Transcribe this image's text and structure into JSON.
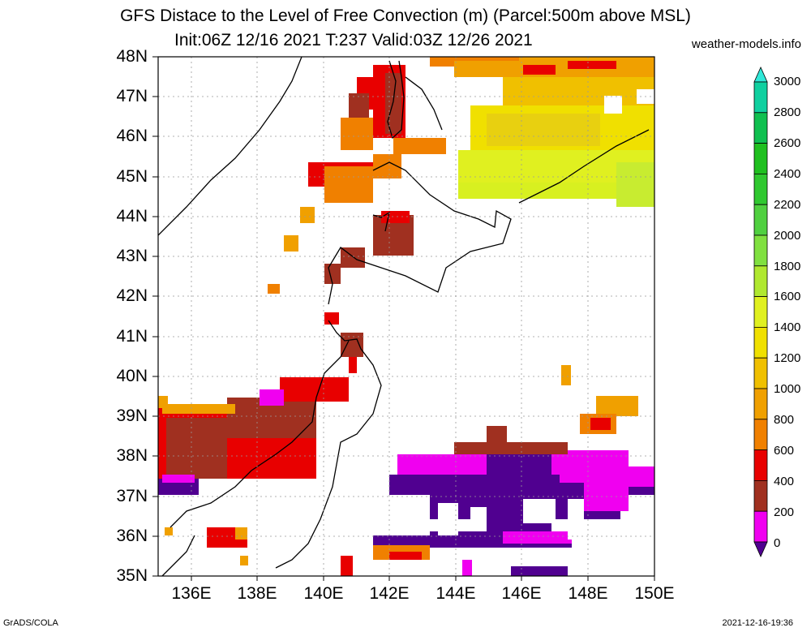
{
  "title_line1": "GFS Distace to the Level of Free Convection (m) (Parcel:500m above MSL)",
  "title_line2": "Init:06Z 12/16 2021 T:237 Valid:03Z 12/26 2021",
  "site": "weather-models.info",
  "footer_left": "GrADS/COLA",
  "footer_right": "2021-12-16-19:36",
  "map": {
    "lat_labels": [
      "48N",
      "47N",
      "46N",
      "45N",
      "44N",
      "43N",
      "42N",
      "41N",
      "40N",
      "39N",
      "38N",
      "37N",
      "36N",
      "35N"
    ],
    "lon_labels": [
      "136E",
      "138E",
      "140E",
      "142E",
      "144E",
      "146E",
      "148E",
      "150E"
    ],
    "lat_range": [
      35,
      48
    ],
    "lon_range": [
      135,
      150
    ]
  },
  "colorbar": {
    "labels": [
      "3000",
      "2800",
      "2600",
      "2400",
      "2200",
      "2000",
      "1800",
      "1600",
      "1400",
      "1200",
      "1000",
      "800",
      "600",
      "400",
      "200",
      "0"
    ],
    "colors": [
      "#30e8d8",
      "#10d0a0",
      "#10c050",
      "#20c020",
      "#30c830",
      "#50d040",
      "#80e040",
      "#b0e830",
      "#e0f020",
      "#f0e000",
      "#f0c000",
      "#f0a000",
      "#f08000",
      "#e80000",
      "#a03020",
      "#f000f0",
      "#500090"
    ],
    "arrow_top_color": "#30e8d8",
    "arrow_bottom_color": "#500090"
  }
}
